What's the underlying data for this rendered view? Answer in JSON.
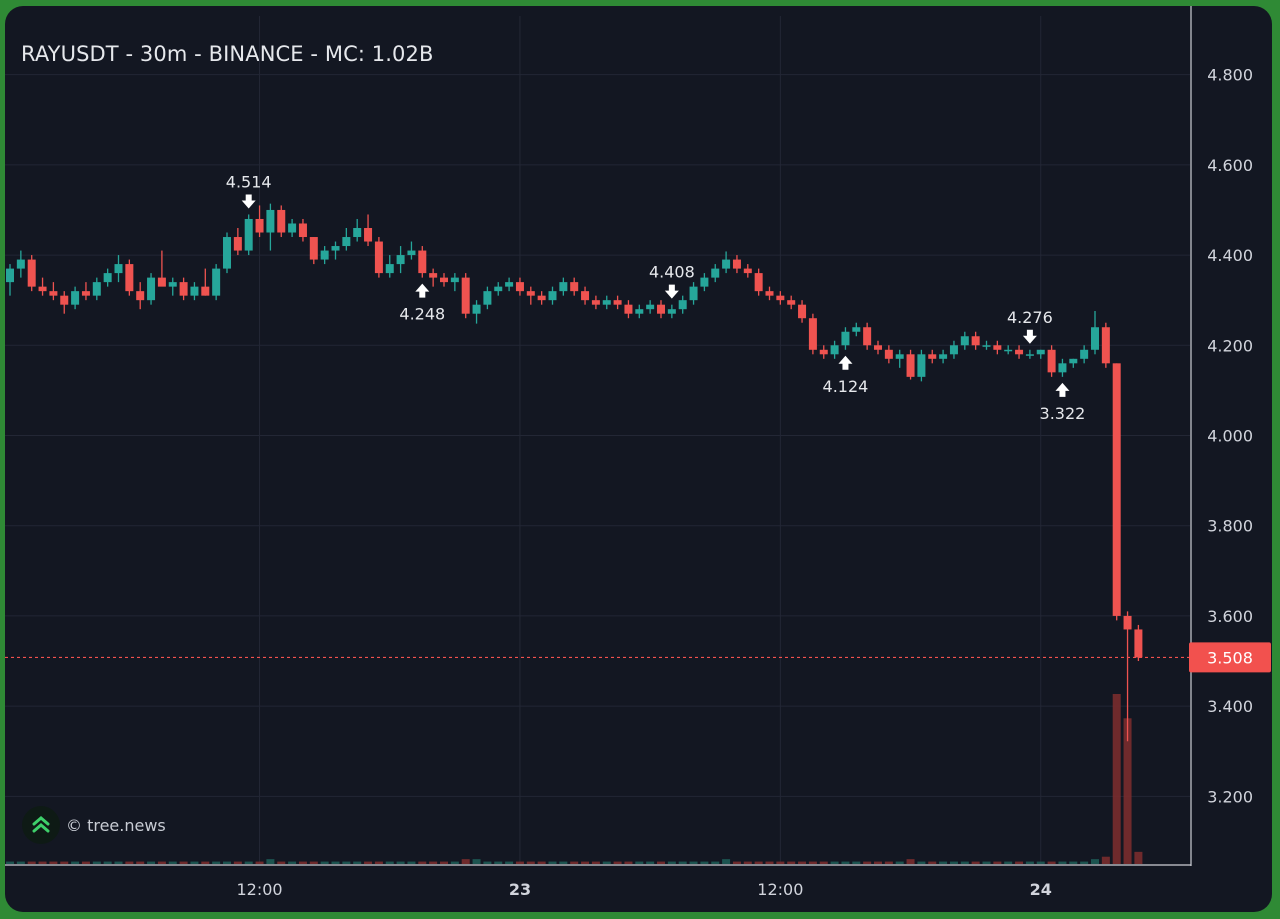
{
  "chart_title": "RAYUSDT - 30m - BINANCE - MC: 1.02B",
  "watermark": "© tree.news",
  "colors": {
    "up": "#26a69a",
    "down": "#ef5350",
    "background": "#131722",
    "grid": "#232735",
    "axis_text": "#d1d4dc",
    "price_tag": "#f2514e"
  },
  "chart_data": {
    "type": "candlestick",
    "symbol": "RAYUSDT",
    "interval": "30m",
    "exchange": "BINANCE",
    "market_cap": "1.02B",
    "ylim": [
      3.05,
      4.93
    ],
    "y_ticks": [
      "4.800",
      "4.600",
      "4.400",
      "4.200",
      "4.000",
      "3.800",
      "3.600",
      "3.400",
      "3.200"
    ],
    "x_ticks": [
      {
        "label": "12:00",
        "index": 23,
        "bold": false
      },
      {
        "label": "23",
        "index": 47,
        "bold": true
      },
      {
        "label": "12:00",
        "index": 71,
        "bold": false
      },
      {
        "label": "24",
        "index": 95,
        "bold": true
      }
    ],
    "last_price": "3.508",
    "annotations": [
      {
        "label": "4.514",
        "index": 22,
        "type": "high"
      },
      {
        "label": "4.248",
        "index": 38,
        "type": "low"
      },
      {
        "label": "4.408",
        "index": 61,
        "type": "high"
      },
      {
        "label": "4.124",
        "index": 77,
        "type": "low"
      },
      {
        "label": "4.276",
        "index": 94,
        "type": "high"
      },
      {
        "label": "3.322",
        "index": 97,
        "type": "low"
      }
    ],
    "candles": [
      [
        4.34,
        4.38,
        4.31,
        4.37,
        1
      ],
      [
        4.37,
        4.41,
        4.35,
        4.39,
        1
      ],
      [
        4.39,
        4.4,
        4.32,
        4.33,
        1
      ],
      [
        4.33,
        4.35,
        4.31,
        4.32,
        1
      ],
      [
        4.32,
        4.34,
        4.3,
        4.31,
        1
      ],
      [
        4.31,
        4.32,
        4.27,
        4.29,
        1
      ],
      [
        4.29,
        4.33,
        4.28,
        4.32,
        1
      ],
      [
        4.32,
        4.34,
        4.3,
        4.31,
        1
      ],
      [
        4.31,
        4.35,
        4.3,
        4.34,
        1
      ],
      [
        4.34,
        4.37,
        4.33,
        4.36,
        1
      ],
      [
        4.36,
        4.4,
        4.34,
        4.38,
        1
      ],
      [
        4.38,
        4.39,
        4.31,
        4.32,
        1
      ],
      [
        4.32,
        4.34,
        4.28,
        4.3,
        1
      ],
      [
        4.3,
        4.36,
        4.29,
        4.35,
        1
      ],
      [
        4.35,
        4.41,
        4.34,
        4.33,
        1
      ],
      [
        4.33,
        4.35,
        4.31,
        4.34,
        1
      ],
      [
        4.34,
        4.35,
        4.3,
        4.31,
        1
      ],
      [
        4.31,
        4.34,
        4.3,
        4.33,
        1
      ],
      [
        4.33,
        4.37,
        4.31,
        4.31,
        1
      ],
      [
        4.31,
        4.38,
        4.3,
        4.37,
        1
      ],
      [
        4.37,
        4.45,
        4.36,
        4.44,
        1
      ],
      [
        4.44,
        4.46,
        4.4,
        4.41,
        1
      ],
      [
        4.41,
        4.49,
        4.4,
        4.48,
        1
      ],
      [
        4.48,
        4.51,
        4.44,
        4.45,
        1
      ],
      [
        4.45,
        4.514,
        4.41,
        4.5,
        2
      ],
      [
        4.5,
        4.51,
        4.44,
        4.45,
        1
      ],
      [
        4.45,
        4.48,
        4.44,
        4.47,
        1
      ],
      [
        4.47,
        4.48,
        4.43,
        4.44,
        1
      ],
      [
        4.44,
        4.44,
        4.38,
        4.39,
        1
      ],
      [
        4.39,
        4.42,
        4.38,
        4.41,
        1
      ],
      [
        4.41,
        4.43,
        4.39,
        4.42,
        1
      ],
      [
        4.42,
        4.46,
        4.41,
        4.44,
        1
      ],
      [
        4.44,
        4.48,
        4.43,
        4.46,
        1
      ],
      [
        4.46,
        4.49,
        4.42,
        4.43,
        1
      ],
      [
        4.43,
        4.44,
        4.35,
        4.36,
        1
      ],
      [
        4.36,
        4.4,
        4.35,
        4.38,
        1
      ],
      [
        4.38,
        4.42,
        4.36,
        4.4,
        1
      ],
      [
        4.4,
        4.43,
        4.39,
        4.41,
        1
      ],
      [
        4.41,
        4.42,
        4.35,
        4.36,
        1
      ],
      [
        4.36,
        4.37,
        4.33,
        4.35,
        1
      ],
      [
        4.35,
        4.36,
        4.33,
        4.34,
        1
      ],
      [
        4.34,
        4.36,
        4.32,
        4.35,
        1
      ],
      [
        4.35,
        4.36,
        4.26,
        4.27,
        2
      ],
      [
        4.27,
        4.3,
        4.248,
        4.29,
        2
      ],
      [
        4.29,
        4.33,
        4.28,
        4.32,
        1
      ],
      [
        4.32,
        4.34,
        4.31,
        4.33,
        1
      ],
      [
        4.33,
        4.35,
        4.32,
        4.34,
        1
      ],
      [
        4.34,
        4.35,
        4.31,
        4.32,
        1
      ],
      [
        4.32,
        4.33,
        4.29,
        4.31,
        1
      ],
      [
        4.31,
        4.32,
        4.29,
        4.3,
        1
      ],
      [
        4.3,
        4.33,
        4.29,
        4.32,
        1
      ],
      [
        4.32,
        4.35,
        4.31,
        4.34,
        1
      ],
      [
        4.34,
        4.35,
        4.31,
        4.32,
        1
      ],
      [
        4.32,
        4.33,
        4.29,
        4.3,
        1
      ],
      [
        4.3,
        4.31,
        4.28,
        4.29,
        1
      ],
      [
        4.29,
        4.31,
        4.28,
        4.3,
        1
      ],
      [
        4.3,
        4.31,
        4.28,
        4.29,
        1
      ],
      [
        4.29,
        4.3,
        4.26,
        4.27,
        1
      ],
      [
        4.27,
        4.29,
        4.26,
        4.28,
        1
      ],
      [
        4.28,
        4.3,
        4.27,
        4.29,
        1
      ],
      [
        4.29,
        4.3,
        4.26,
        4.27,
        1
      ],
      [
        4.27,
        4.29,
        4.26,
        4.28,
        1
      ],
      [
        4.28,
        4.31,
        4.27,
        4.3,
        1
      ],
      [
        4.3,
        4.34,
        4.29,
        4.33,
        1
      ],
      [
        4.33,
        4.36,
        4.32,
        4.35,
        1
      ],
      [
        4.35,
        4.38,
        4.34,
        4.37,
        1
      ],
      [
        4.37,
        4.408,
        4.36,
        4.39,
        2
      ],
      [
        4.39,
        4.4,
        4.36,
        4.37,
        1
      ],
      [
        4.37,
        4.38,
        4.35,
        4.36,
        1
      ],
      [
        4.36,
        4.37,
        4.31,
        4.32,
        1
      ],
      [
        4.32,
        4.33,
        4.3,
        4.31,
        1
      ],
      [
        4.31,
        4.32,
        4.29,
        4.3,
        1
      ],
      [
        4.3,
        4.31,
        4.28,
        4.29,
        1
      ],
      [
        4.29,
        4.3,
        4.25,
        4.26,
        1
      ],
      [
        4.26,
        4.27,
        4.18,
        4.19,
        1
      ],
      [
        4.19,
        4.2,
        4.17,
        4.18,
        1
      ],
      [
        4.18,
        4.21,
        4.17,
        4.2,
        1
      ],
      [
        4.2,
        4.24,
        4.19,
        4.23,
        1
      ],
      [
        4.23,
        4.25,
        4.22,
        4.24,
        1
      ],
      [
        4.24,
        4.25,
        4.19,
        4.2,
        1
      ],
      [
        4.2,
        4.21,
        4.18,
        4.19,
        1
      ],
      [
        4.19,
        4.2,
        4.16,
        4.17,
        1
      ],
      [
        4.17,
        4.19,
        4.15,
        4.18,
        1
      ],
      [
        4.18,
        4.19,
        4.124,
        4.13,
        2
      ],
      [
        4.13,
        4.19,
        4.12,
        4.18,
        1
      ],
      [
        4.18,
        4.19,
        4.16,
        4.17,
        1
      ],
      [
        4.17,
        4.19,
        4.16,
        4.18,
        1
      ],
      [
        4.18,
        4.21,
        4.17,
        4.2,
        1
      ],
      [
        4.2,
        4.23,
        4.19,
        4.22,
        1
      ],
      [
        4.22,
        4.23,
        4.19,
        4.2,
        1
      ],
      [
        4.2,
        4.21,
        4.19,
        4.2,
        1
      ],
      [
        4.2,
        4.21,
        4.18,
        4.19,
        1
      ],
      [
        4.19,
        4.2,
        4.18,
        4.19,
        1
      ],
      [
        4.19,
        4.2,
        4.17,
        4.18,
        1
      ],
      [
        4.18,
        4.19,
        4.17,
        4.18,
        1
      ],
      [
        4.18,
        4.19,
        4.17,
        4.19,
        1
      ],
      [
        4.19,
        4.2,
        4.13,
        4.14,
        1
      ],
      [
        4.14,
        4.17,
        4.13,
        4.16,
        1
      ],
      [
        4.16,
        4.17,
        4.15,
        4.17,
        1
      ],
      [
        4.17,
        4.2,
        4.16,
        4.19,
        1
      ],
      [
        4.19,
        4.276,
        4.18,
        4.24,
        2
      ],
      [
        4.24,
        4.25,
        4.15,
        4.16,
        3
      ],
      [
        4.16,
        4.16,
        3.59,
        3.6,
        70
      ],
      [
        3.6,
        3.61,
        3.322,
        3.57,
        60
      ],
      [
        3.57,
        3.58,
        3.5,
        3.508,
        5
      ]
    ]
  }
}
